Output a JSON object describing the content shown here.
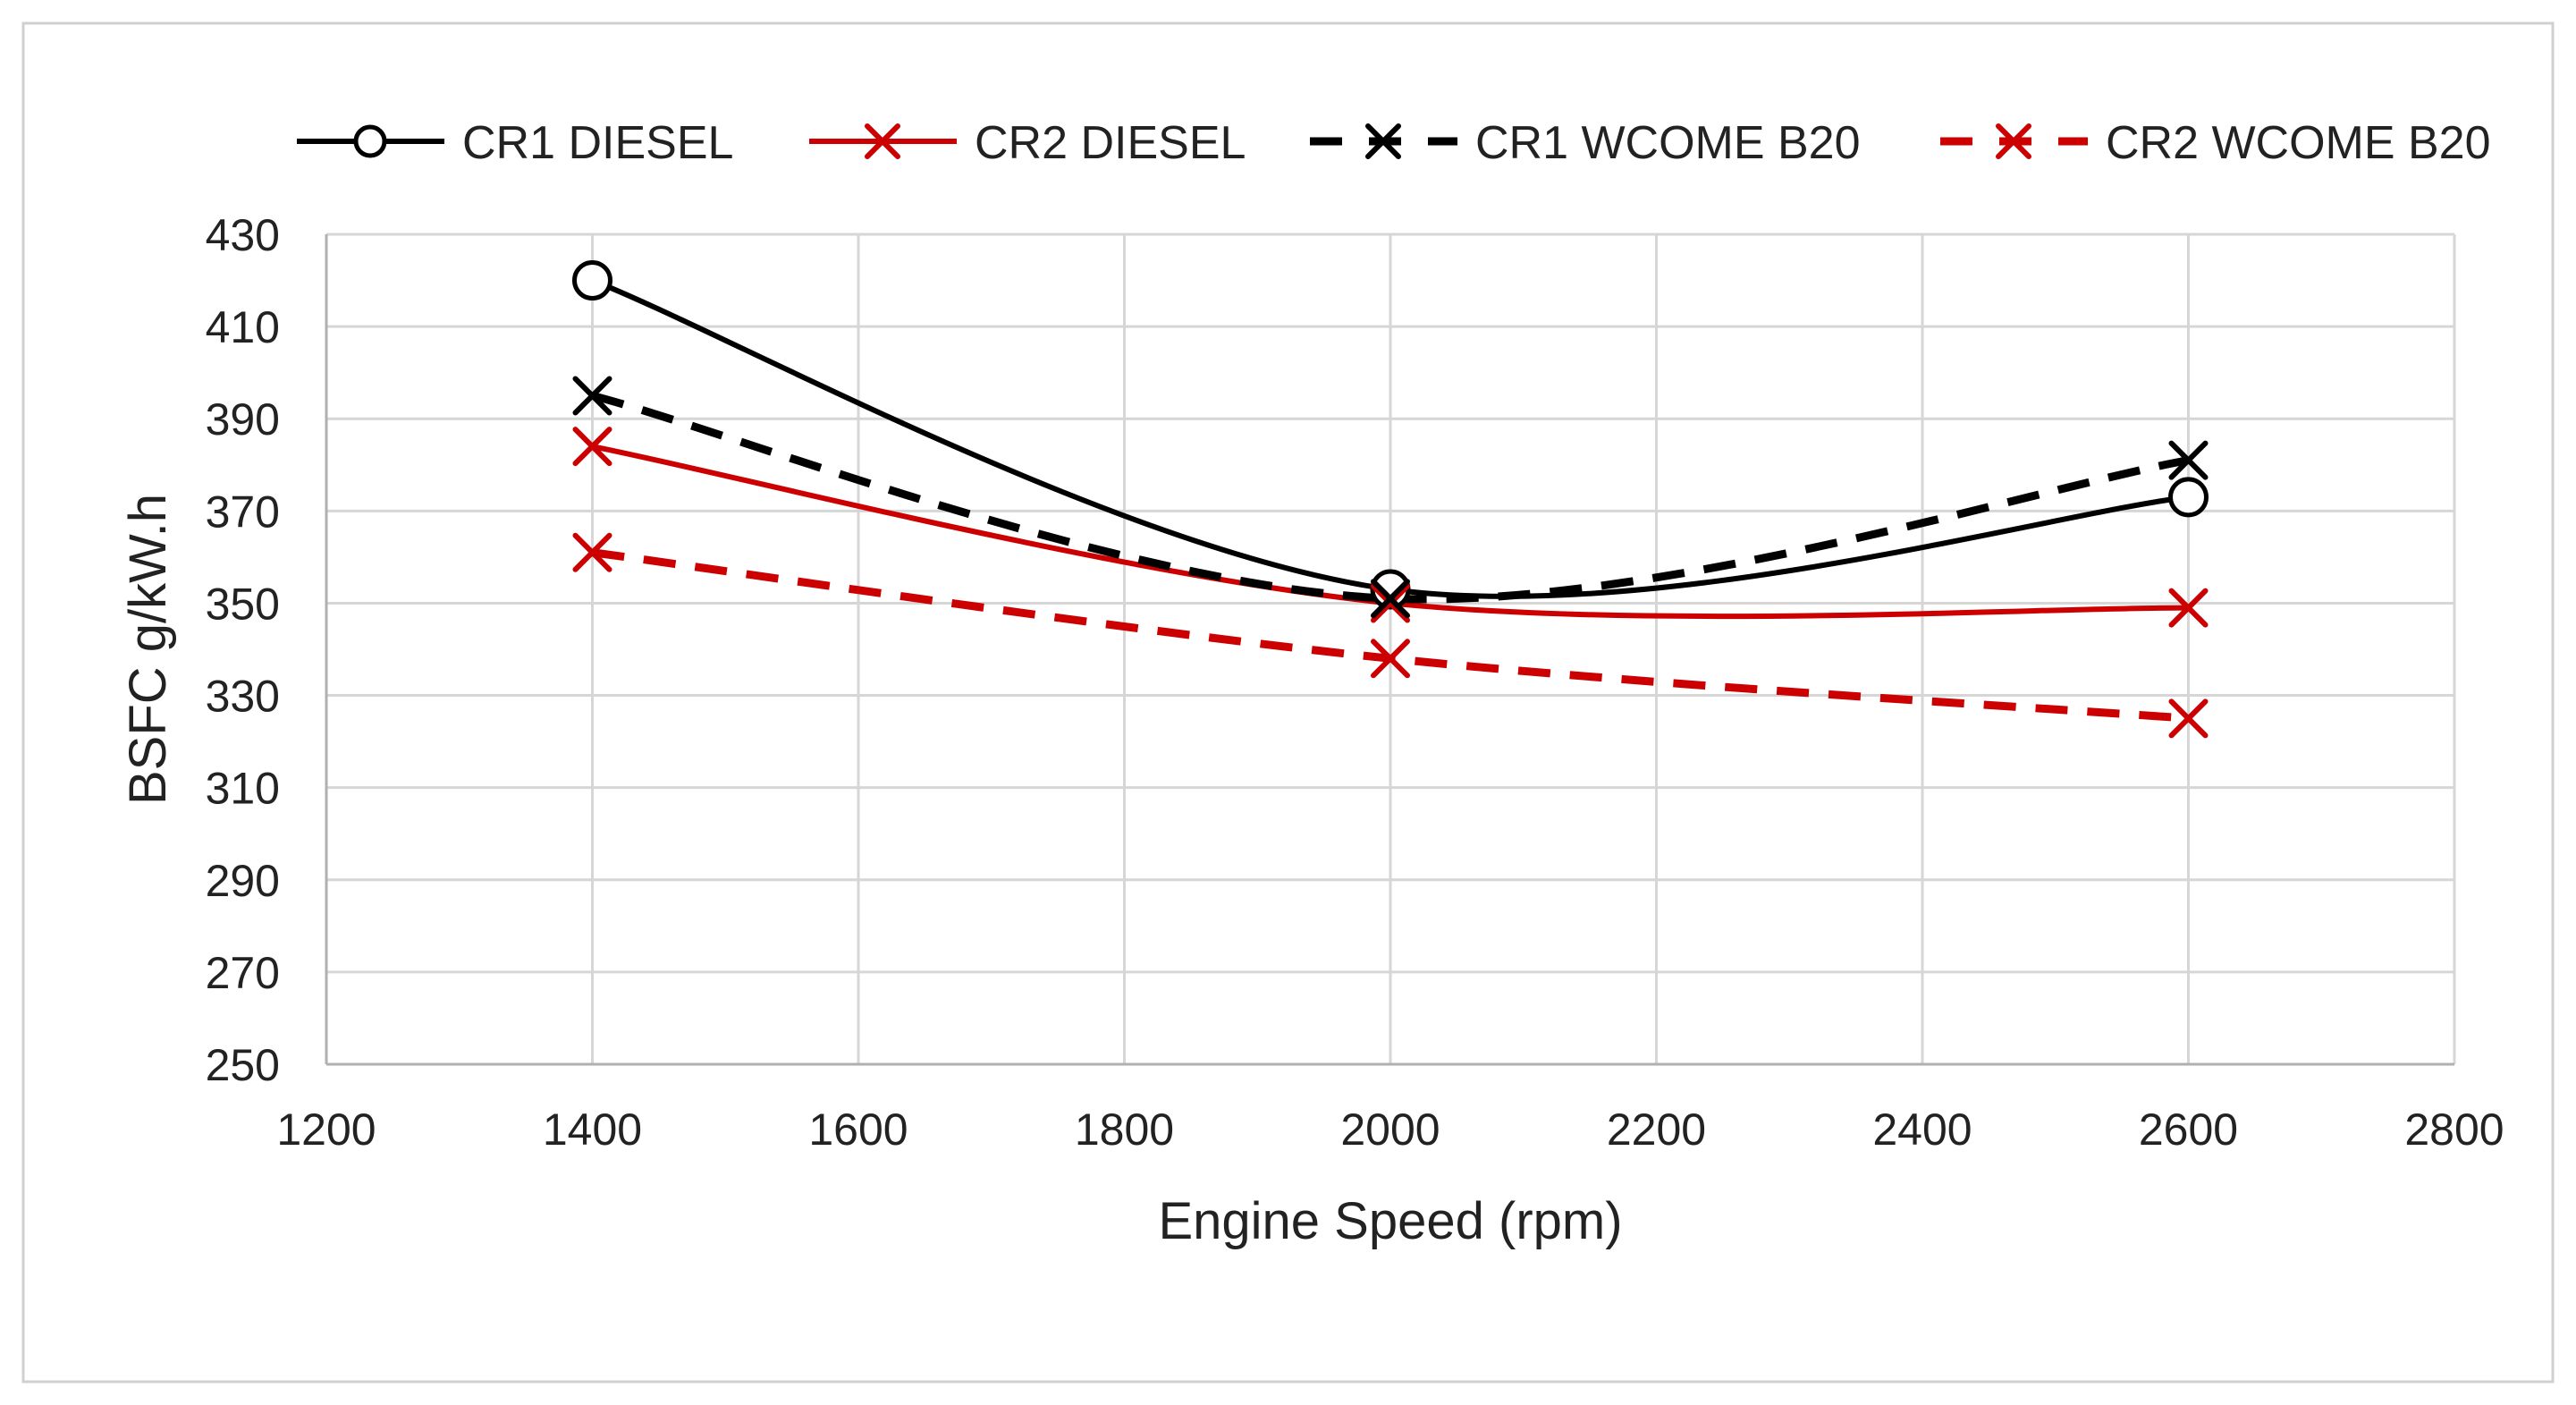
{
  "chart_data": {
    "type": "line",
    "title": "",
    "xlabel": "Engine Speed (rpm)",
    "ylabel": "BSFC g/kW.h",
    "xlim": [
      1200,
      2800
    ],
    "ylim": [
      250,
      430
    ],
    "x_ticks": [
      1200,
      1400,
      1600,
      1800,
      2000,
      2200,
      2400,
      2600,
      2800
    ],
    "y_ticks": [
      250,
      270,
      290,
      310,
      330,
      350,
      370,
      390,
      410,
      430
    ],
    "grid": true,
    "legend_position": "top",
    "series": [
      {
        "name": "CR1 DIESEL",
        "x": [
          1400,
          2000,
          2600
        ],
        "values": [
          420,
          353,
          373
        ],
        "color": "#000000",
        "line_style": "solid",
        "marker": "circle",
        "smooth": true
      },
      {
        "name": "CR2 DIESEL",
        "x": [
          1400,
          2000,
          2600
        ],
        "values": [
          384,
          350,
          349
        ],
        "color": "#cc0000",
        "line_style": "solid",
        "marker": "x",
        "smooth": true
      },
      {
        "name": "CR1 WCOME B20",
        "x": [
          1400,
          2000,
          2600
        ],
        "values": [
          395,
          351,
          381
        ],
        "color": "#000000",
        "line_style": "dashed",
        "marker": "x",
        "smooth": true
      },
      {
        "name": "CR2 WCOME B20",
        "x": [
          1400,
          2000,
          2600
        ],
        "values": [
          361,
          338,
          325
        ],
        "color": "#cc0000",
        "line_style": "dashed",
        "marker": "x",
        "smooth": true
      }
    ]
  }
}
